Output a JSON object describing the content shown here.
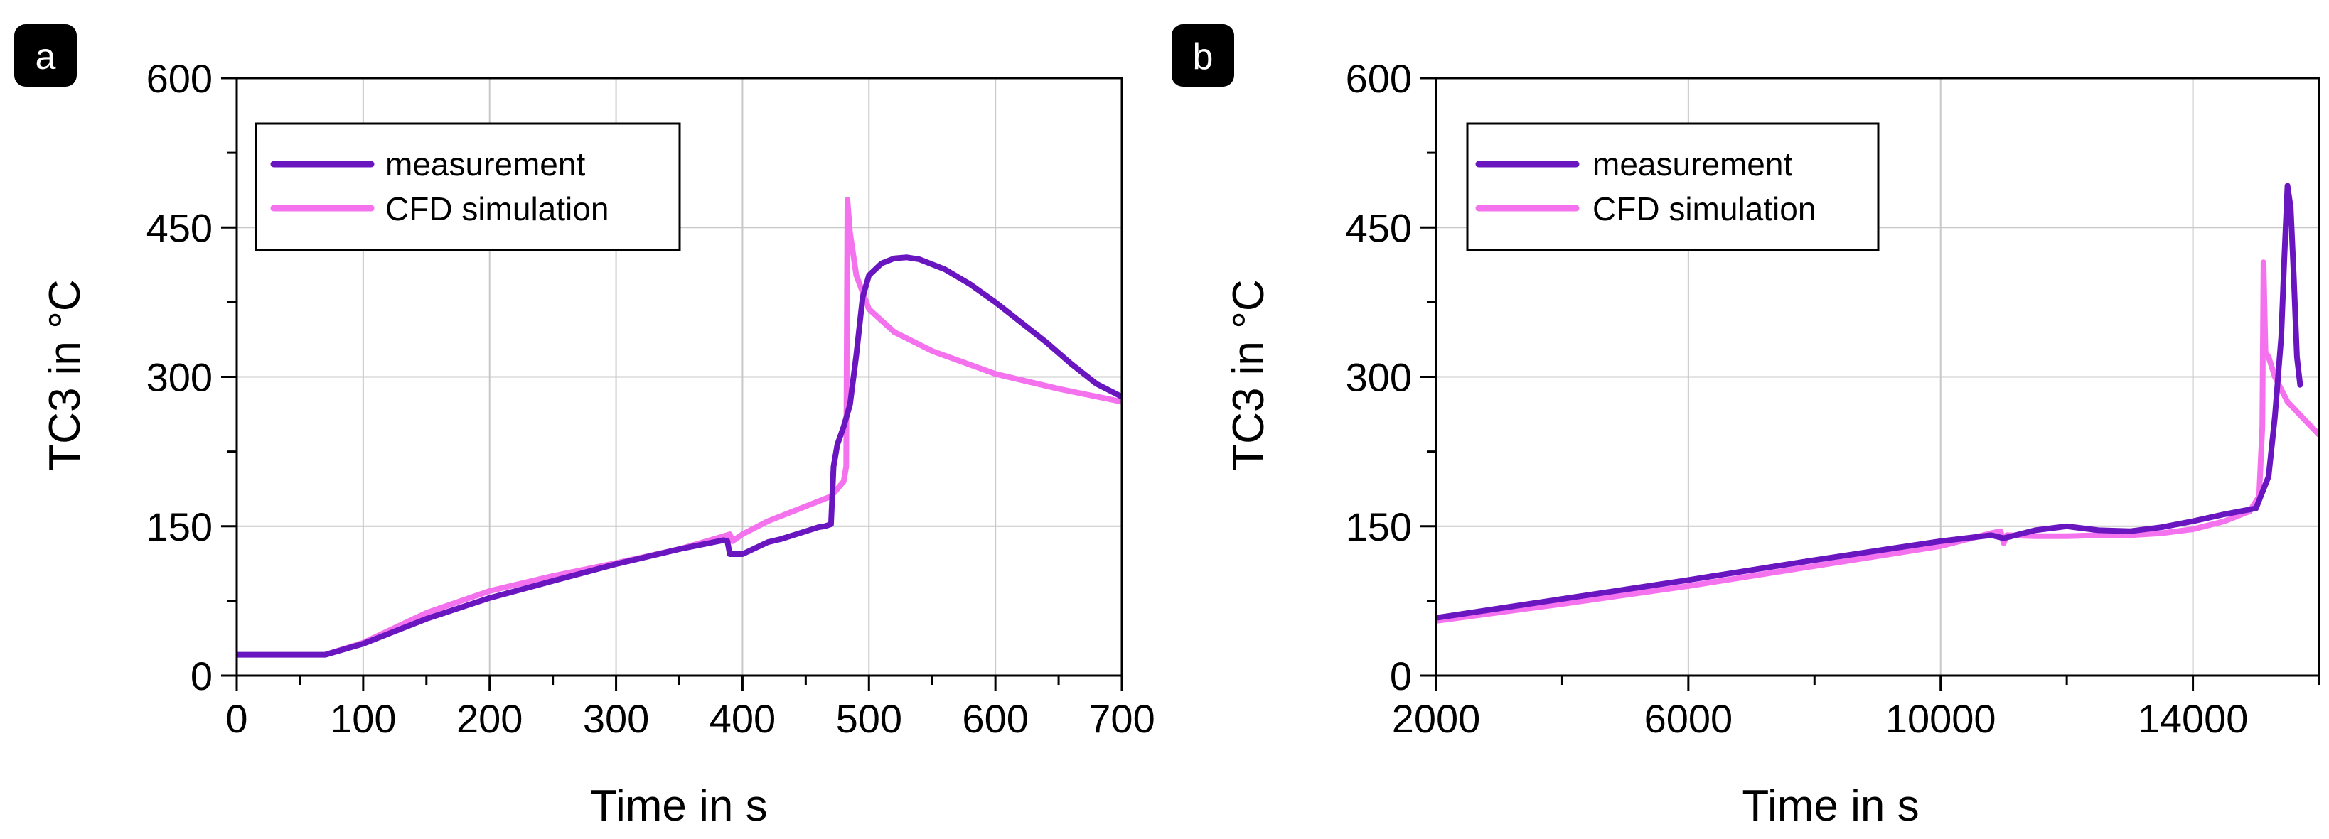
{
  "colors": {
    "measurement": "#6a16c0",
    "cfd_simulation": "#f472ee",
    "grid": "#c8c8c8",
    "axis": "#000000",
    "badge": "#000000"
  },
  "chart_data": [
    {
      "panel": "a",
      "type": "line",
      "xlabel": "Time in s",
      "ylabel": "TC3 in °C",
      "xlim": [
        0,
        700
      ],
      "ylim": [
        0,
        600
      ],
      "xticks": [
        0,
        100,
        200,
        300,
        400,
        500,
        600,
        700
      ],
      "yticks": [
        0,
        150,
        300,
        450,
        600
      ],
      "xtick_labels": [
        "0",
        "100",
        "200",
        "300",
        "400",
        "500",
        "600",
        "700"
      ],
      "ytick_labels": [
        "0",
        "150",
        "300",
        "450",
        "600"
      ],
      "grid": true,
      "legend_position": "top-left",
      "series": [
        {
          "name": "measurement",
          "x": [
            0,
            70,
            100,
            150,
            200,
            250,
            300,
            350,
            385,
            388,
            390,
            400,
            410,
            420,
            430,
            440,
            450,
            460,
            465,
            470,
            472,
            475,
            480,
            485,
            490,
            495,
            500,
            510,
            520,
            530,
            540,
            560,
            580,
            600,
            620,
            640,
            660,
            680,
            700
          ],
          "y": [
            21,
            21,
            32,
            57,
            78,
            95,
            112,
            127,
            136,
            135,
            122,
            122,
            128,
            134,
            137,
            141,
            145,
            149,
            150,
            152,
            210,
            232,
            250,
            272,
            322,
            380,
            402,
            414,
            419,
            420,
            418,
            408,
            393,
            375,
            355,
            335,
            313,
            293,
            280
          ]
        },
        {
          "name": "CFD simulation",
          "x": [
            70,
            100,
            150,
            200,
            250,
            300,
            350,
            385,
            390,
            392,
            400,
            420,
            440,
            460,
            470,
            480,
            482,
            483,
            485,
            490,
            500,
            520,
            550,
            600,
            650,
            700
          ],
          "y": [
            21,
            33,
            63,
            85,
            100,
            113,
            127,
            140,
            142,
            135,
            142,
            155,
            165,
            175,
            180,
            195,
            210,
            478,
            445,
            402,
            368,
            345,
            326,
            303,
            288,
            275
          ]
        }
      ]
    },
    {
      "panel": "b",
      "type": "line",
      "xlabel": "Time in s",
      "ylabel": "TC3 in °C",
      "xlim": [
        2000,
        16000
      ],
      "ylim": [
        0,
        600
      ],
      "xticks": [
        2000,
        6000,
        10000,
        14000
      ],
      "yticks": [
        0,
        150,
        300,
        450,
        600
      ],
      "xtick_labels": [
        "2000",
        "6000",
        "10000",
        "14000"
      ],
      "ytick_labels": [
        "0",
        "150",
        "300",
        "450",
        "600"
      ],
      "grid": true,
      "legend_position": "top-left",
      "series": [
        {
          "name": "measurement",
          "x": [
            2000,
            4000,
            6000,
            8000,
            10000,
            10800,
            11000,
            11500,
            12000,
            12500,
            13000,
            13500,
            14000,
            14500,
            15000,
            15200,
            15300,
            15400,
            15450,
            15500,
            15550,
            15600,
            15650,
            15700
          ],
          "y": [
            58,
            77,
            96,
            116,
            135,
            141,
            138,
            146,
            150,
            146,
            145,
            149,
            155,
            162,
            168,
            200,
            260,
            340,
            420,
            492,
            470,
            400,
            320,
            292
          ]
        },
        {
          "name": "CFD simulation",
          "x": [
            2000,
            4000,
            6000,
            8000,
            10000,
            10800,
            10950,
            11000,
            11050,
            11500,
            12000,
            12500,
            13000,
            13500,
            14000,
            14500,
            14900,
            15050,
            15100,
            15120,
            15150,
            15200,
            15300,
            15500,
            15800,
            16000
          ],
          "y": [
            55,
            72,
            90,
            110,
            130,
            143,
            145,
            133,
            141,
            140,
            140,
            141,
            141,
            143,
            147,
            155,
            165,
            180,
            250,
            415,
            325,
            320,
            300,
            275,
            255,
            242
          ]
        }
      ]
    }
  ]
}
